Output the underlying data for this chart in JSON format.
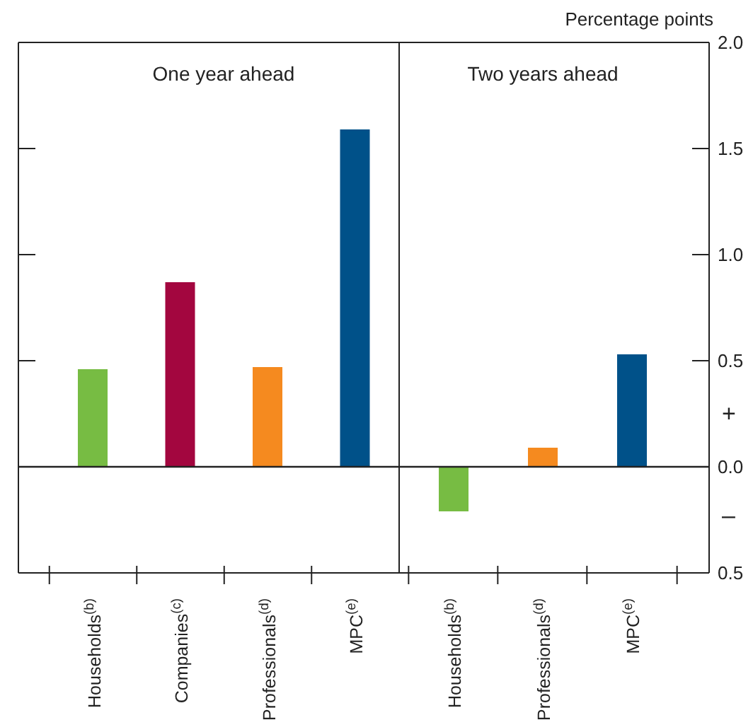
{
  "chart_data": [
    {
      "type": "bar",
      "title": "One year ahead",
      "categories": [
        "Households$^{(b)}$",
        "Companies$^{(c)}$",
        "Professionals$^{(d)}$",
        "MPC$^{(e)}$"
      ],
      "values": [
        0.46,
        0.87,
        0.47,
        1.59
      ],
      "colors": [
        "#77bc43",
        "#a3063f",
        "#f58a1f",
        "#005189"
      ],
      "ylim": [
        -0.5,
        2.0
      ],
      "yticks": [
        {
          "value": -0.5,
          "label": null
        },
        {
          "value": 0,
          "label": null
        },
        {
          "value": 0.5,
          "label": null
        },
        {
          "value": 1,
          "label": null
        },
        {
          "value": 1.5,
          "label": null
        },
        {
          "value": 2,
          "label": null
        }
      ],
      "tick_labels": "x",
      "ref_lines": [
        {
          "axis": "y",
          "value": 0
        }
      ]
    },
    {
      "type": "bar",
      "title": "Two years ahead",
      "ylabel": "Percentage points",
      "categories": [
        "Households$^{(b)}$",
        "Professionals$^{(d)}$",
        "MPC$^{(e)}$"
      ],
      "values": [
        -0.21,
        0.09,
        0.53
      ],
      "colors": [
        "#77bc43",
        "#f58a1f",
        "#005189"
      ],
      "ylim": [
        -0.5,
        2.0
      ],
      "yticks": [
        {
          "value": -0.5,
          "label": "0.5"
        },
        {
          "value": 0,
          "label": "0.0"
        },
        0.5,
        {
          "value": 1,
          "label": "1.0"
        },
        1.5,
        {
          "value": 2,
          "label": "2.0"
        }
      ],
      "annotations": [
        "+",
        "–"
      ],
      "ref_lines": [
        {
          "axis": "y",
          "value": 0
        }
      ]
    }
  ]
}
